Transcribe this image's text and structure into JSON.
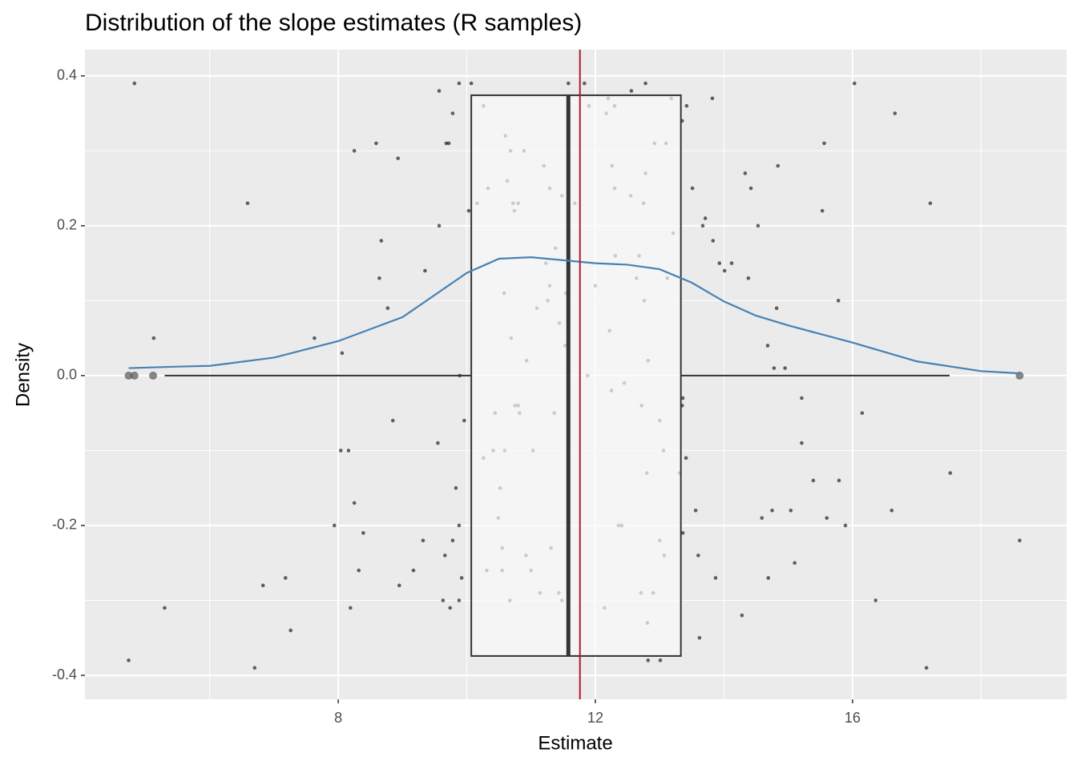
{
  "chart_data": {
    "type": "boxplot",
    "title": "Distribution of the slope estimates (R samples)",
    "x_label": "Estimate",
    "y_label": "Density",
    "xlim": [
      4.06,
      19.33
    ],
    "ylim": [
      -0.432,
      0.435
    ],
    "xticks": [
      8,
      12,
      16
    ],
    "yticks": [
      -0.4,
      -0.2,
      {
        "value": 0,
        "label": "0.0"
      },
      0.2,
      0.4
    ],
    "x_minor_grid": [
      6,
      10,
      14,
      18
    ],
    "y_minor_grid": [
      -0.3,
      -0.1,
      0.1,
      0.3
    ],
    "grid": true,
    "box": {
      "lower_whisker": 5.3,
      "q1": 10.07,
      "median": 11.58,
      "q3": 13.33,
      "upper_whisker": 17.51,
      "outliers": [
        4.74,
        4.83,
        5.12,
        18.6
      ],
      "color": "#333333"
    },
    "mean_line": {
      "value": 11.76,
      "color": "#b2182b"
    },
    "density": {
      "color": "#4682b4",
      "x": [
        4.74,
        5.5,
        6,
        7,
        8,
        9,
        10,
        10.5,
        11,
        11.5,
        12,
        12.5,
        13,
        13.5,
        14,
        14.5,
        15,
        16,
        17,
        18,
        18.6
      ],
      "y": [
        0.01,
        0.012,
        0.013,
        0.024,
        0.046,
        0.078,
        0.137,
        0.156,
        0.158,
        0.154,
        0.15,
        0.148,
        0.142,
        0.124,
        0.099,
        0.08,
        0.067,
        0.044,
        0.019,
        0.006,
        0.003
      ]
    },
    "points": {
      "color": "#000000",
      "x": [
        4.83,
        4.74,
        5.13,
        5.3,
        6.59,
        6.7,
        6.83,
        7.18,
        7.26,
        7.63,
        7.94,
        8.04,
        8.06,
        8.16,
        8.19,
        8.25,
        8.25,
        8.32,
        8.39,
        8.59,
        8.64,
        8.67,
        8.77,
        8.85,
        8.93,
        8.95,
        9.17,
        9.32,
        9.35,
        9.55,
        9.57,
        9.57,
        9.63,
        9.66,
        9.68,
        9.72,
        9.74,
        9.78,
        9.78,
        9.83,
        9.88,
        9.88,
        9.88,
        9.89,
        9.92,
        9.96,
        10.03,
        10.07,
        10.16,
        10.26,
        10.26,
        10.31,
        10.33,
        10.41,
        10.44,
        10.49,
        10.52,
        10.55,
        10.55,
        10.58,
        10.59,
        10.6,
        10.63,
        10.67,
        10.68,
        10.69,
        10.72,
        10.74,
        10.75,
        10.8,
        10.8,
        10.82,
        10.89,
        10.92,
        10.93,
        11.0,
        11.03,
        11.09,
        11.14,
        11.2,
        11.23,
        11.26,
        11.29,
        11.29,
        11.31,
        11.36,
        11.38,
        11.43,
        11.44,
        11.48,
        11.48,
        11.53,
        11.54,
        11.58,
        11.68,
        11.83,
        11.88,
        11.9,
        12.0,
        12.14,
        12.17,
        12.2,
        12.22,
        12.25,
        12.26,
        12.3,
        12.3,
        12.31,
        12.36,
        12.41,
        12.45,
        12.55,
        12.56,
        12.64,
        12.68,
        12.71,
        12.72,
        12.75,
        12.76,
        12.78,
        12.78,
        12.8,
        12.81,
        12.82,
        12.82,
        12.9,
        12.92,
        13.0,
        13.01,
        13.0,
        13.07,
        13.06,
        13.1,
        13.12,
        13.18,
        13.21,
        13.31,
        13.35,
        13.35,
        13.36,
        13.36,
        13.42,
        13.41,
        13.51,
        13.56,
        13.6,
        13.62,
        13.67,
        13.71,
        13.82,
        13.83,
        13.87,
        13.93,
        14.01,
        14.12,
        14.28,
        14.33,
        14.38,
        14.42,
        14.53,
        14.59,
        14.68,
        14.69,
        14.75,
        14.78,
        14.82,
        14.84,
        14.95,
        15.04,
        15.1,
        15.21,
        15.21,
        15.39,
        15.53,
        15.56,
        15.6,
        15.78,
        15.79,
        15.89,
        16.03,
        16.15,
        16.36,
        16.61,
        16.66,
        17.15,
        17.21,
        17.52,
        18.6
      ],
      "y": [
        0.39,
        -0.38,
        0.05,
        -0.31,
        0.23,
        -0.39,
        -0.28,
        -0.27,
        -0.34,
        0.05,
        -0.2,
        -0.1,
        0.03,
        -0.1,
        -0.31,
        0.3,
        -0.17,
        -0.26,
        -0.21,
        0.31,
        0.13,
        0.18,
        0.09,
        -0.06,
        0.29,
        -0.28,
        -0.26,
        -0.22,
        0.14,
        -0.09,
        0.2,
        0.38,
        -0.3,
        -0.24,
        0.31,
        0.31,
        -0.31,
        -0.22,
        0.35,
        -0.15,
        0.39,
        -0.2,
        -0.3,
        0.0,
        -0.27,
        -0.06,
        0.22,
        0.39,
        0.23,
        0.36,
        -0.11,
        -0.26,
        0.25,
        -0.1,
        -0.05,
        -0.19,
        -0.15,
        -0.23,
        -0.26,
        0.11,
        -0.1,
        0.32,
        0.26,
        -0.3,
        0.3,
        0.05,
        0.23,
        0.22,
        -0.04,
        -0.04,
        0.23,
        -0.05,
        0.3,
        -0.24,
        0.02,
        -0.26,
        -0.1,
        0.09,
        -0.29,
        0.28,
        0.15,
        0.1,
        0.25,
        0.12,
        -0.23,
        -0.05,
        0.17,
        -0.29,
        0.07,
        0.24,
        -0.3,
        0.04,
        0.11,
        0.39,
        0.23,
        0.39,
        0.0,
        0.36,
        0.12,
        -0.31,
        0.35,
        0.37,
        0.06,
        -0.02,
        0.28,
        0.36,
        0.25,
        0.16,
        -0.2,
        -0.2,
        -0.01,
        0.24,
        0.38,
        0.13,
        0.16,
        -0.29,
        -0.04,
        0.23,
        0.1,
        0.39,
        0.27,
        -0.13,
        -0.33,
        0.02,
        -0.38,
        -0.29,
        0.31,
        -0.22,
        -0.38,
        -0.06,
        -0.24,
        -0.1,
        0.31,
        0.13,
        0.37,
        0.19,
        -0.13,
        0.34,
        -0.04,
        -0.03,
        -0.21,
        0.36,
        -0.11,
        0.25,
        -0.18,
        -0.24,
        -0.35,
        0.2,
        0.21,
        0.37,
        0.18,
        -0.27,
        0.15,
        0.14,
        0.15,
        -0.32,
        0.27,
        0.13,
        0.25,
        0.2,
        -0.19,
        0.04,
        -0.27,
        -0.18,
        0.01,
        0.09,
        0.28,
        0.01,
        -0.18,
        -0.25,
        -0.03,
        -0.09,
        -0.14,
        0.22,
        0.31,
        -0.19,
        0.1,
        -0.14,
        -0.2,
        0.39,
        -0.05,
        -0.3,
        -0.18,
        0.35,
        -0.39,
        0.23,
        -0.13,
        -0.22
      ]
    }
  }
}
